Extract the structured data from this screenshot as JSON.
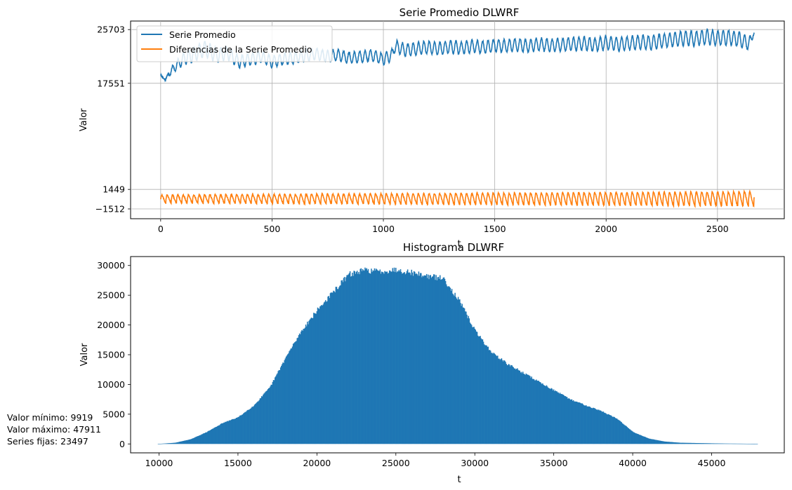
{
  "chart_data": [
    {
      "type": "line",
      "title": "Serie Promedio DLWRF",
      "xlabel": "t",
      "ylabel": "Valor",
      "xlim": [
        -135,
        2800
      ],
      "ylim": [
        -3000,
        27000
      ],
      "xticks": [
        0,
        500,
        1000,
        1500,
        2000,
        2500
      ],
      "yticks": [
        -1512,
        1449,
        17551,
        25703
      ],
      "ytick_labels": [
        "−1512",
        "1449",
        "17551",
        "25703"
      ],
      "grid": true,
      "legend_position": "upper-left",
      "n_points": 2666,
      "colors": {
        "serie": "#1f77b4",
        "diferencias": "#ff7f0e"
      },
      "series": [
        {
          "name": "Serie Promedio",
          "color": "#1f77b4",
          "x": [
            0,
            20,
            40,
            100,
            150,
            200,
            250,
            300,
            350,
            400,
            450,
            500,
            550,
            600,
            650,
            700,
            750,
            800,
            850,
            900,
            950,
            1000,
            1040,
            1050,
            1100,
            1150,
            1200,
            1250,
            1300,
            1350,
            1400,
            1450,
            1500,
            1550,
            1600,
            1650,
            1700,
            1750,
            1800,
            1850,
            1900,
            1950,
            2000,
            2050,
            2100,
            2150,
            2200,
            2250,
            2300,
            2350,
            2400,
            2450,
            2500,
            2550,
            2600,
            2640,
            2666
          ],
          "y": [
            18800,
            18000,
            19200,
            21200,
            22000,
            22800,
            21800,
            22200,
            20800,
            21200,
            21600,
            20800,
            21200,
            21400,
            21800,
            22000,
            21600,
            21800,
            21400,
            21600,
            21800,
            21200,
            21900,
            23200,
            22600,
            22800,
            23000,
            22800,
            23100,
            22900,
            23200,
            23000,
            23300,
            23200,
            23400,
            23200,
            23500,
            23300,
            23400,
            23500,
            23600,
            23400,
            23700,
            23500,
            23600,
            23800,
            23700,
            24000,
            24200,
            24400,
            24300,
            24600,
            24400,
            24500,
            24200,
            23600,
            25200
          ],
          "amplitude": [
            0,
            0,
            500,
            900,
            1100,
            1200,
            1100,
            1000,
            900,
            900,
            900,
            850,
            850,
            850,
            850,
            850,
            850,
            850,
            850,
            850,
            850,
            850,
            850,
            950,
            950,
            950,
            950,
            950,
            950,
            950,
            950,
            950,
            950,
            950,
            950,
            950,
            950,
            950,
            950,
            1000,
            1000,
            1000,
            1000,
            1000,
            1000,
            1050,
            1050,
            1050,
            1050,
            1100,
            1100,
            1100,
            1100,
            1100,
            1100,
            1000,
            0
          ]
        },
        {
          "name": "Diferencias de la Serie Promedio",
          "color": "#ff7f0e",
          "x": [
            0,
            2666
          ],
          "y": [
            0,
            0
          ],
          "min": -1512,
          "max": 1449,
          "amplitude": [
            600,
            1100
          ],
          "period": 24
        }
      ]
    },
    {
      "type": "bar",
      "title": "Histograma DLWRF",
      "xlabel": "t",
      "ylabel": "Valor",
      "xlim": [
        8200,
        49600
      ],
      "ylim": [
        -1500,
        31500
      ],
      "xticks": [
        10000,
        15000,
        20000,
        25000,
        30000,
        35000,
        40000,
        45000
      ],
      "yticks": [
        0,
        5000,
        10000,
        15000,
        20000,
        25000,
        30000
      ],
      "grid": false,
      "color": "#1f77b4",
      "x": [
        9919,
        11000,
        12000,
        13000,
        14000,
        15000,
        16000,
        17000,
        18000,
        19000,
        20000,
        21000,
        22000,
        23000,
        24000,
        25000,
        26000,
        27000,
        28000,
        29000,
        30000,
        31000,
        32000,
        33000,
        34000,
        35000,
        36000,
        37000,
        38000,
        39000,
        40000,
        41000,
        42000,
        43000,
        44000,
        45000,
        46000,
        47000,
        47911
      ],
      "y": [
        0,
        200,
        800,
        2000,
        3500,
        4500,
        6500,
        9500,
        14500,
        19000,
        22500,
        25500,
        28500,
        29200,
        29000,
        29300,
        28800,
        28200,
        27800,
        24000,
        19000,
        15500,
        13500,
        12000,
        10500,
        9000,
        7500,
        6500,
        5500,
        4200,
        2000,
        900,
        400,
        200,
        150,
        100,
        60,
        40,
        0
      ]
    }
  ],
  "stats": {
    "min_label": "Valor mínimo: 9919",
    "max_label": "Valor máximo: 47911",
    "fixed_label": "Series fijas: 23497"
  }
}
